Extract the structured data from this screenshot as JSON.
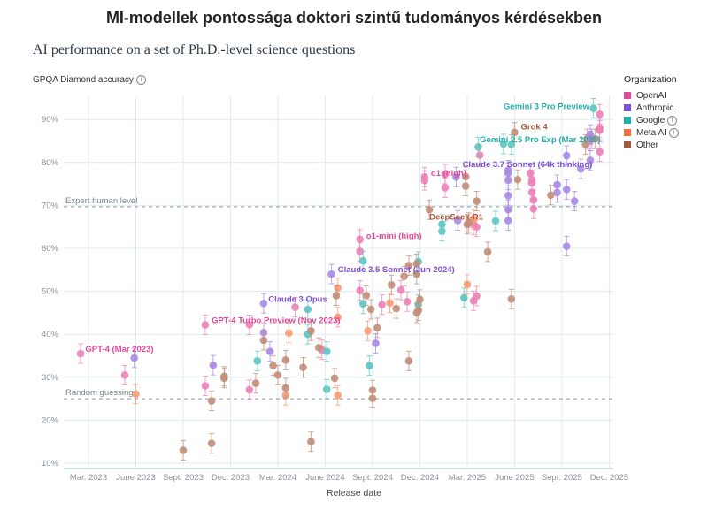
{
  "header": {
    "main_title": "MI-modellek pontossága doktori szintű tudományos kérdésekben",
    "subtitle": "AI performance on a set of Ph.D.-level science questions",
    "y_axis_title": "GPQA Diamond accuracy",
    "info_icon": "info-icon",
    "x_axis_title": "Release date"
  },
  "legend": {
    "title": "Organization",
    "items": [
      {
        "label": "OpenAI",
        "color": "#e5489b",
        "info": false
      },
      {
        "label": "Anthropic",
        "color": "#7d4fd6",
        "info": false
      },
      {
        "label": "Google",
        "color": "#1fb0ab",
        "info": true
      },
      {
        "label": "Meta AI",
        "color": "#f5703c",
        "info": true
      },
      {
        "label": "Other",
        "color": "#a9573a",
        "info": false
      }
    ]
  },
  "chart_data": {
    "type": "scatter",
    "title": "AI performance on a set of Ph.D.-level science questions",
    "xlabel": "Release date",
    "ylabel": "GPQA Diamond accuracy",
    "x_unit": "months since Mar. 2023",
    "xlim": [
      -1.5,
      33.5
    ],
    "ylim": [
      10,
      93
    ],
    "grid": true,
    "legend_position": "top-right",
    "x_ticks": [
      {
        "value": 0,
        "label": "Mar. 2023"
      },
      {
        "value": 3,
        "label": "June 2023"
      },
      {
        "value": 6,
        "label": "Sept. 2023"
      },
      {
        "value": 9,
        "label": "Dec. 2023"
      },
      {
        "value": 12,
        "label": "Mar. 2024"
      },
      {
        "value": 15,
        "label": "June 2024"
      },
      {
        "value": 18,
        "label": "Sept. 2024"
      },
      {
        "value": 21,
        "label": "Dec. 2024"
      },
      {
        "value": 24,
        "label": "Mar. 2025"
      },
      {
        "value": 27,
        "label": "June 2025"
      },
      {
        "value": 30,
        "label": "Sept. 2025"
      },
      {
        "value": 33,
        "label": "Dec. 2025"
      }
    ],
    "y_ticks": [
      {
        "value": 10,
        "label": "10%"
      },
      {
        "value": 20,
        "label": "20%"
      },
      {
        "value": 30,
        "label": "30%"
      },
      {
        "value": 40,
        "label": "40%"
      },
      {
        "value": 50,
        "label": "50%"
      },
      {
        "value": 60,
        "label": "60%"
      },
      {
        "value": 70,
        "label": "70%"
      },
      {
        "value": 80,
        "label": "80%"
      },
      {
        "value": 90,
        "label": "90%"
      }
    ],
    "reference_lines": [
      {
        "value": 69.7,
        "label": "Expert human level"
      },
      {
        "value": 25,
        "label": "Random guessing"
      }
    ],
    "series": [
      {
        "name": "OpenAI",
        "color": "#e5489b",
        "points": [
          [
            -0.5,
            35.5
          ],
          [
            2.3,
            30.5
          ],
          [
            7.4,
            42.2
          ],
          [
            7.4,
            28
          ],
          [
            10.2,
            42.2
          ],
          [
            10.2,
            27.1
          ],
          [
            13.1,
            46.3
          ],
          [
            14.8,
            36.4
          ],
          [
            17.2,
            62.1
          ],
          [
            17.2,
            59.3
          ],
          [
            17.2,
            50.2
          ],
          [
            18.6,
            46.9
          ],
          [
            20.2,
            47.6
          ],
          [
            19.8,
            50.3
          ],
          [
            21.3,
            76.6
          ],
          [
            21.3,
            75.8
          ],
          [
            22.6,
            77.3
          ],
          [
            22.6,
            74.1
          ],
          [
            24.4,
            47.8
          ],
          [
            24.6,
            48.9
          ],
          [
            24.8,
            81.7
          ],
          [
            24.4,
            65.5
          ],
          [
            24.6,
            65.0
          ],
          [
            28.0,
            77.5
          ],
          [
            28.1,
            76.0
          ],
          [
            28.1,
            75.2
          ],
          [
            28.1,
            73.0
          ],
          [
            28.2,
            71.3
          ],
          [
            28.2,
            69.2
          ],
          [
            31.6,
            85.5
          ],
          [
            31.8,
            85.0
          ],
          [
            32.4,
            91.2
          ],
          [
            32.4,
            88.0
          ],
          [
            32.4,
            87.5
          ],
          [
            32.4,
            82.5
          ]
        ]
      },
      {
        "name": "Anthropic",
        "color": "#7d4fd6",
        "points": [
          [
            2.9,
            34.5
          ],
          [
            7.9,
            32.8
          ],
          [
            11.1,
            47.2
          ],
          [
            11.1,
            40.4
          ],
          [
            11.5,
            36.0
          ],
          [
            15.4,
            54.0
          ],
          [
            18.2,
            37.9
          ],
          [
            23.3,
            76.6
          ],
          [
            23.4,
            66.5
          ],
          [
            26.6,
            78.2
          ],
          [
            26.6,
            77.5
          ],
          [
            26.6,
            75.9
          ],
          [
            26.6,
            72.3
          ],
          [
            26.6,
            69.0
          ],
          [
            26.6,
            66.5
          ],
          [
            29.7,
            74.8
          ],
          [
            29.7,
            73.0
          ],
          [
            30.3,
            81.6
          ],
          [
            30.3,
            73.7
          ],
          [
            30.3,
            60.5
          ],
          [
            30.8,
            71.0
          ],
          [
            31.8,
            86.5
          ],
          [
            31.8,
            80.5
          ],
          [
            31.9,
            85.5
          ],
          [
            31.2,
            78.5
          ]
        ]
      },
      {
        "name": "Google",
        "color": "#1fb0ab",
        "points": [
          [
            10.7,
            33.8
          ],
          [
            13.9,
            45.8
          ],
          [
            13.9,
            40.0
          ],
          [
            15.1,
            36.0
          ],
          [
            15.1,
            27.2
          ],
          [
            17.4,
            57.1
          ],
          [
            17.4,
            47.1
          ],
          [
            17.8,
            32.7
          ],
          [
            20.9,
            56.9
          ],
          [
            20.9,
            46.9
          ],
          [
            22.4,
            65.6
          ],
          [
            22.4,
            64.0
          ],
          [
            23.8,
            48.5
          ],
          [
            24.7,
            83.6
          ],
          [
            25.8,
            66.4
          ],
          [
            26.3,
            84.3
          ],
          [
            26.8,
            84.2
          ],
          [
            32.0,
            92.6
          ]
        ]
      },
      {
        "name": "Meta AI",
        "color": "#f5703c",
        "points": [
          [
            3.0,
            26.1
          ],
          [
            12.7,
            40.3
          ],
          [
            12.5,
            25.8
          ],
          [
            15.8,
            50.8
          ],
          [
            15.8,
            44.0
          ],
          [
            15.8,
            25.8
          ],
          [
            17.7,
            40.8
          ],
          [
            19.1,
            47.3
          ],
          [
            24.0,
            51.6
          ],
          [
            24.4,
            66.8
          ]
        ]
      },
      {
        "name": "Other",
        "color": "#a9573a",
        "points": [
          [
            6.0,
            13.0
          ],
          [
            7.8,
            24.5
          ],
          [
            7.8,
            14.6
          ],
          [
            8.6,
            30.2
          ],
          [
            8.6,
            29.8
          ],
          [
            10.6,
            28.6
          ],
          [
            11.1,
            38.6
          ],
          [
            11.7,
            32.7
          ],
          [
            12.0,
            30.5
          ],
          [
            12.5,
            34.0
          ],
          [
            12.5,
            27.5
          ],
          [
            13.6,
            32.3
          ],
          [
            14.1,
            40.8
          ],
          [
            14.1,
            15.0
          ],
          [
            14.6,
            36.9
          ],
          [
            15.6,
            29.8
          ],
          [
            15.7,
            49.0
          ],
          [
            17.6,
            49.0
          ],
          [
            17.9,
            45.8
          ],
          [
            18.0,
            27.0
          ],
          [
            18.0,
            25.1
          ],
          [
            18.3,
            41.5
          ],
          [
            19.2,
            51.5
          ],
          [
            19.5,
            46.0
          ],
          [
            20.0,
            53.5
          ],
          [
            20.3,
            56.0
          ],
          [
            20.8,
            56.4
          ],
          [
            20.8,
            54.0
          ],
          [
            20.8,
            45.0
          ],
          [
            20.9,
            45.5
          ],
          [
            21.0,
            48.1
          ],
          [
            20.3,
            33.8
          ],
          [
            21.6,
            69.0
          ],
          [
            23.9,
            76.7
          ],
          [
            23.9,
            74.5
          ],
          [
            24.0,
            65.6
          ],
          [
            24.1,
            66.0
          ],
          [
            24.6,
            71.0
          ],
          [
            25.3,
            59.2
          ],
          [
            26.8,
            48.2
          ],
          [
            27.2,
            76.0
          ],
          [
            27.0,
            87.0
          ],
          [
            29.3,
            72.4
          ],
          [
            31.5,
            84.2
          ],
          [
            32.1,
            85.5
          ]
        ]
      }
    ],
    "annotations": [
      {
        "text": "GPT-4 (Mar 2023)",
        "series": "OpenAI"
      },
      {
        "text": "GPT-4 Turbo Preview (Nov 2023)",
        "series": "OpenAI"
      },
      {
        "text": "Claude 3 Opus",
        "series": "Anthropic"
      },
      {
        "text": "Claude 3.5 Sonnet (Jun 2024)",
        "series": "Anthropic"
      },
      {
        "text": "o1-mini (high)",
        "series": "OpenAI"
      },
      {
        "text": "o1 (high)",
        "series": "OpenAI"
      },
      {
        "text": "DeepSeek-R1",
        "series": "Other"
      },
      {
        "text": "Claude 3.7 Sonnet (64k thinking)",
        "series": "Anthropic"
      },
      {
        "text": "Gemini 2.5 Pro Exp (Mar 2025)",
        "series": "Google"
      },
      {
        "text": "Grok 4",
        "series": "Other"
      },
      {
        "text": "Gemini 3 Pro Preview",
        "series": "Google"
      }
    ]
  }
}
